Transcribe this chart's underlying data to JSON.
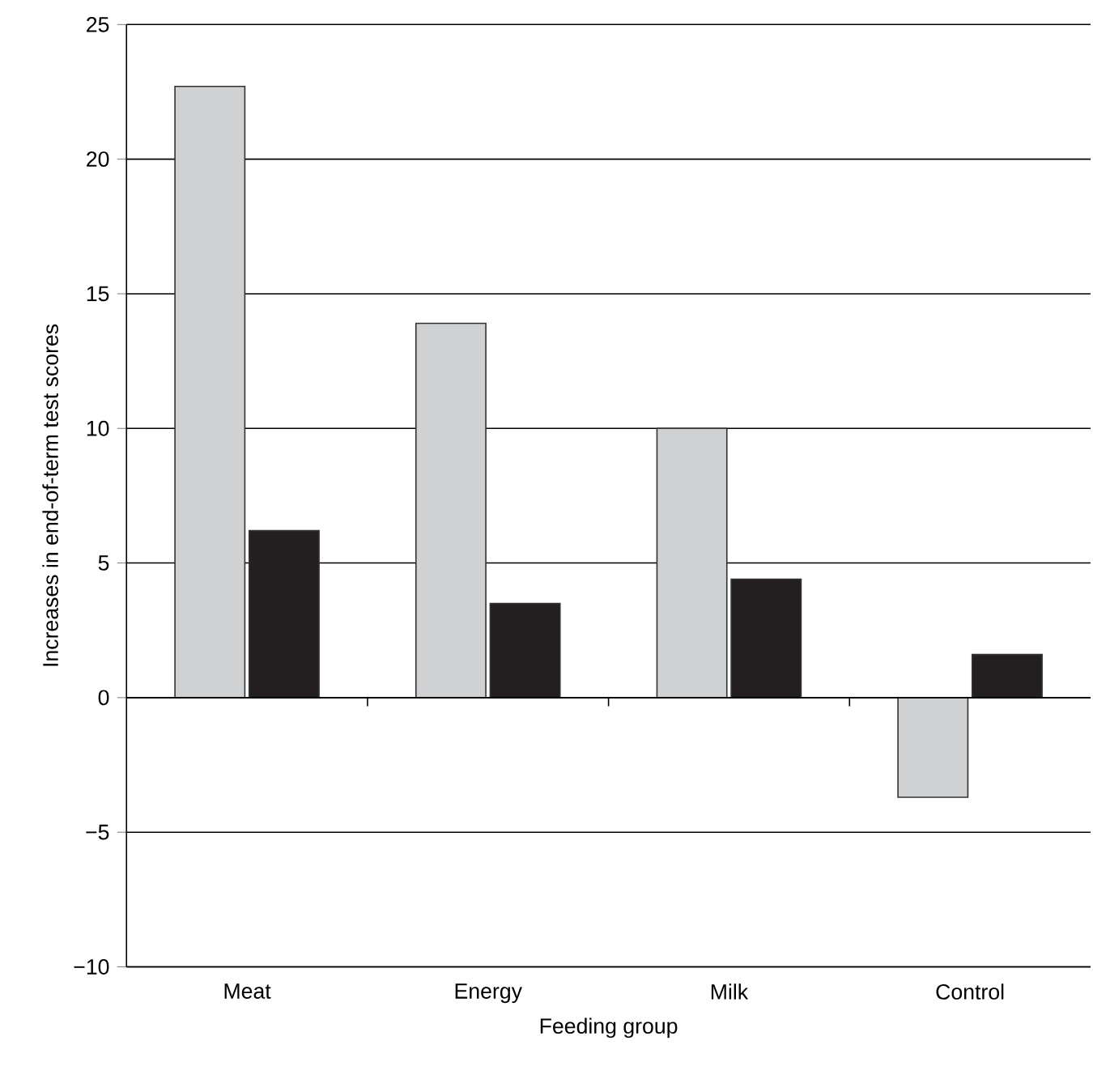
{
  "chart_data": {
    "type": "bar",
    "xlabel": "Feeding group",
    "ylabel": "Increases in end-of-term test scores",
    "categories": [
      "Meat",
      "Energy",
      "Milk",
      "Control"
    ],
    "series": [
      {
        "color": "#d0d1d3",
        "values": [
          22.7,
          13.9,
          10.0,
          -3.7
        ]
      },
      {
        "color": "#231f20",
        "values": [
          6.2,
          3.5,
          4.4,
          1.6
        ]
      }
    ],
    "ylim": [
      -10,
      25
    ],
    "yticks": [
      {
        "value": -10,
        "label": "−10"
      },
      {
        "value": -5,
        "label": "−5"
      },
      0,
      5,
      10,
      15,
      20,
      25
    ],
    "grid": "y"
  }
}
